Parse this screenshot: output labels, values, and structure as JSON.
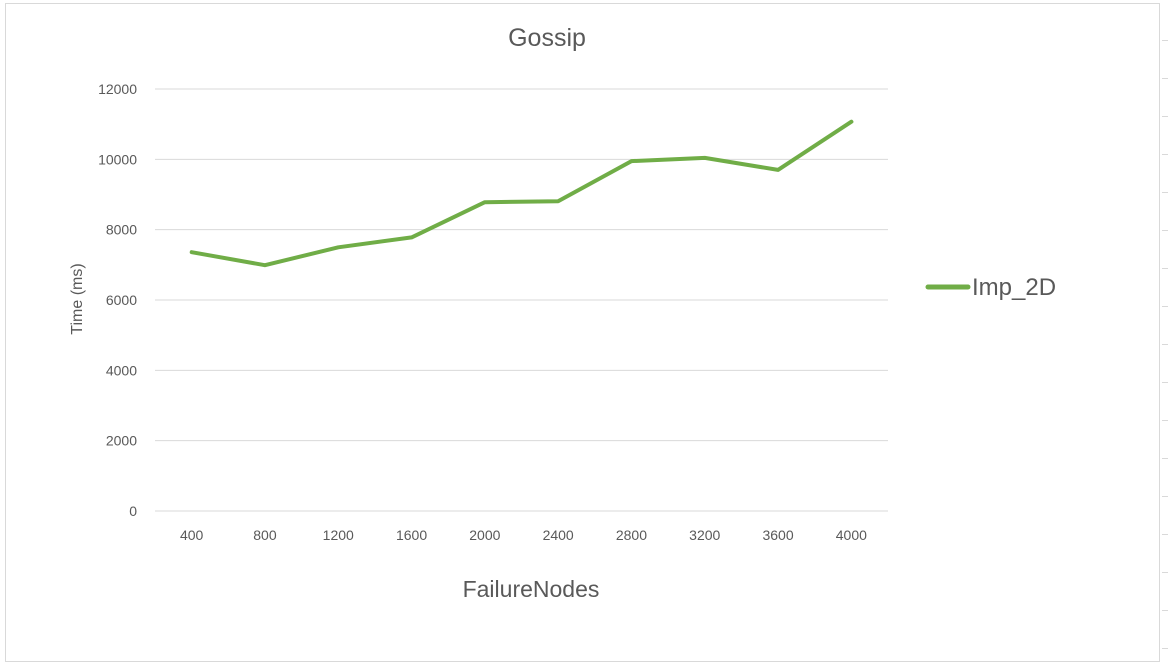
{
  "chart_data": {
    "type": "line",
    "title": "Gossip",
    "xlabel": "FailureNodes",
    "ylabel": "Time (ms)",
    "categories": [
      "400",
      "800",
      "1200",
      "1600",
      "2000",
      "2400",
      "2800",
      "3200",
      "3600",
      "4000"
    ],
    "series": [
      {
        "name": "Imp_2D",
        "color": "#70ad47",
        "values": [
          7360,
          6990,
          7500,
          7780,
          8780,
          8810,
          9950,
          10040,
          9700,
          11070
        ]
      }
    ],
    "ylim": [
      0,
      12000
    ],
    "yticks": [
      "0",
      "2000",
      "4000",
      "6000",
      "8000",
      "10000",
      "12000"
    ],
    "grid": true,
    "legend_position": "right"
  }
}
